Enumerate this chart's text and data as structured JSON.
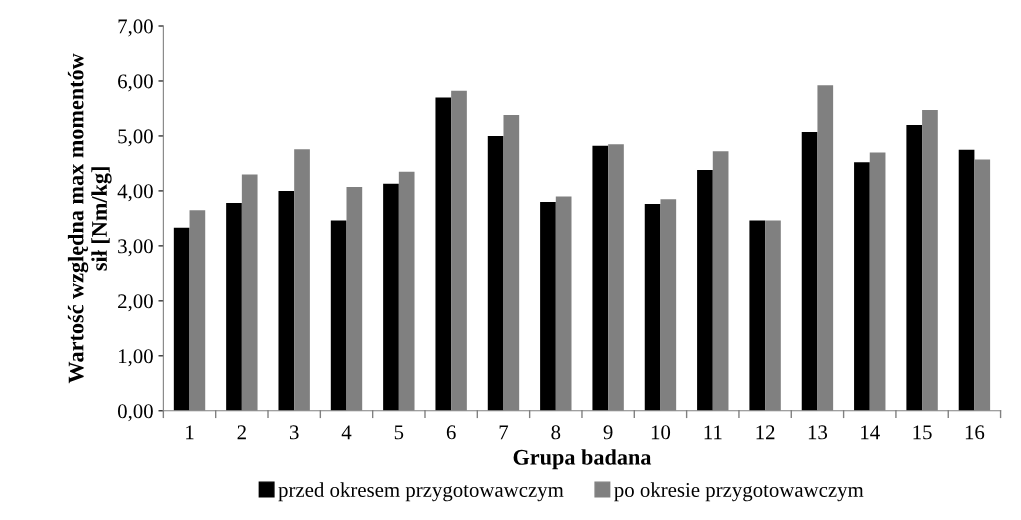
{
  "chart_data": {
    "type": "bar",
    "xlabel": "Grupa badana",
    "ylabel": "Wartość względna max momentów\nsił [Nm/kg]",
    "categories": [
      "1",
      "2",
      "3",
      "4",
      "5",
      "6",
      "7",
      "8",
      "9",
      "10",
      "11",
      "12",
      "13",
      "14",
      "15",
      "16"
    ],
    "series": [
      {
        "name": "przed okresem przygotowawczym",
        "color": "#000000",
        "values": [
          3.33,
          3.78,
          4.0,
          3.46,
          4.13,
          5.7,
          5.0,
          3.8,
          4.82,
          3.76,
          4.38,
          3.46,
          5.07,
          4.52,
          5.2,
          4.75
        ]
      },
      {
        "name": "po okresie przygotowawczym",
        "color": "#808080",
        "values": [
          3.65,
          4.3,
          4.76,
          4.07,
          4.35,
          5.82,
          5.38,
          3.9,
          4.85,
          3.85,
          4.72,
          3.46,
          5.92,
          4.7,
          5.47,
          4.57
        ]
      }
    ],
    "ylim": [
      0,
      7
    ],
    "yticks": [
      {
        "value": 0,
        "label": "0,00"
      },
      {
        "value": 1,
        "label": "1,00"
      },
      {
        "value": 2,
        "label": "2,00"
      },
      {
        "value": 3,
        "label": "3,00"
      },
      {
        "value": 4,
        "label": "4,00"
      },
      {
        "value": 5,
        "label": "5,00"
      },
      {
        "value": 6,
        "label": "6,00"
      },
      {
        "value": 7,
        "label": "7,00"
      }
    ],
    "grid": false,
    "legend": "bottom"
  }
}
